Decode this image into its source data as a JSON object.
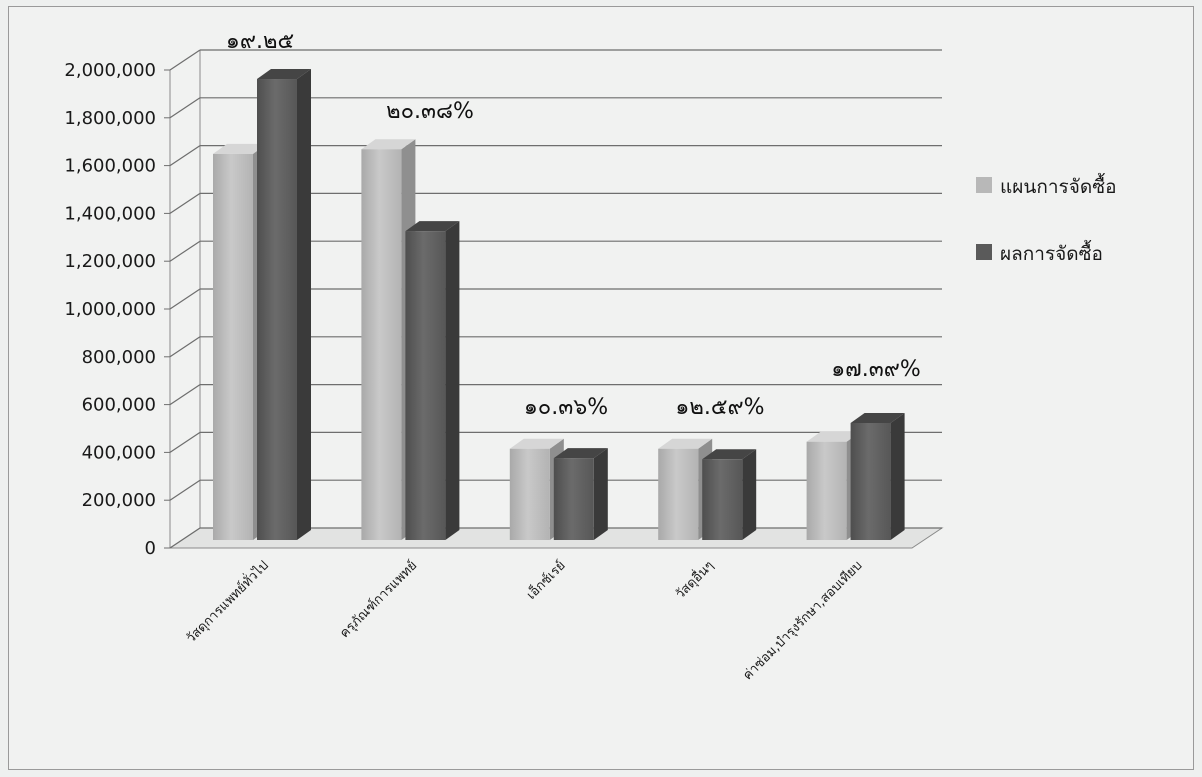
{
  "chart_data": {
    "type": "bar",
    "title": "",
    "xlabel": "",
    "ylabel": "",
    "ylim": [
      0,
      2000000
    ],
    "yticks": [
      0,
      200000,
      400000,
      600000,
      800000,
      1000000,
      1200000,
      1400000,
      1600000,
      1800000,
      2000000
    ],
    "ytick_labels": [
      "0",
      "200,000",
      "400,000",
      "600,000",
      "800,000",
      "1,000,000",
      "1,200,000",
      "1,400,000",
      "1,600,000",
      "1,800,000",
      "2,000,000"
    ],
    "categories": [
      "วัสดุการแพทย์ทั่วไป",
      "ครุภัณฑ์การแพทย์",
      "เอ็กซ์เรย์",
      "วัสดุอื่นๆ",
      "ค่าซ่อม,บำรุงรักษา,สอบเทียบ"
    ],
    "series": [
      {
        "name": "แผนการจัดซื้อ",
        "values": [
          1650000,
          1670000,
          390000,
          390000,
          420000
        ],
        "color": "#b8b8b8"
      },
      {
        "name": "ผลการจัดซื้อ",
        "values": [
          1970000,
          1320000,
          350000,
          345000,
          500000
        ],
        "color": "#5a5a5a"
      }
    ],
    "annotations": [
      "๑๙.๒๕",
      "๒๐.๓๘%",
      "๑๐.๓๖%",
      "๑๒.๕๙%",
      "๑๗.๓๙%"
    ],
    "grid": true,
    "legend_position": "right",
    "style": "3d-clustered-column"
  }
}
